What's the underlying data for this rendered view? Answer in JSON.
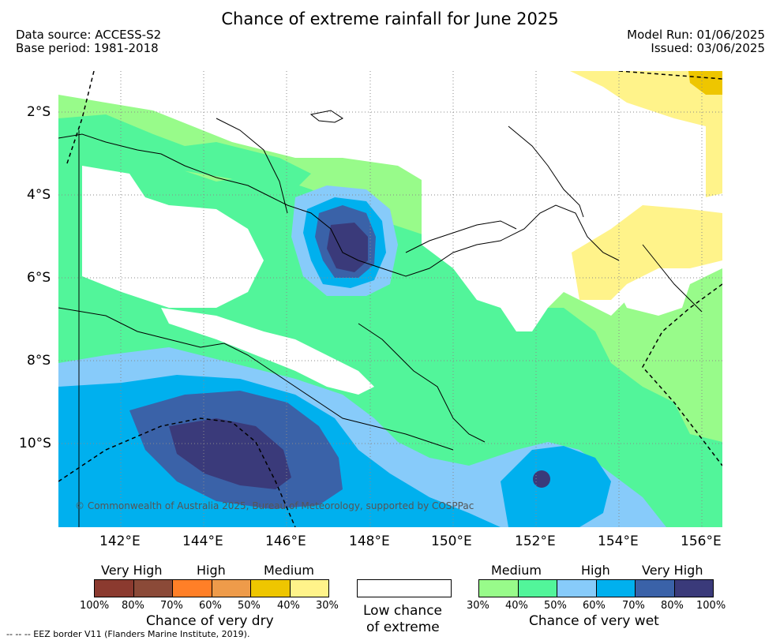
{
  "title": "Chance of extreme rainfall for June 2025",
  "data_source": "Data source: ACCESS-S2",
  "base_period": "Base period: 1981-2018",
  "model_run": "Model Run: 01/06/2025",
  "issued": "Issued: 03/06/2025",
  "lat_labels": [
    "2°S",
    "4°S",
    "6°S",
    "8°S",
    "10°S"
  ],
  "lon_labels": [
    "142°E",
    "144°E",
    "146°E",
    "148°E",
    "150°E",
    "152°E",
    "154°E",
    "156°E"
  ],
  "credit": "© Commonwealth of Australia 2025, Bureau of Meteorology, supported by COSPPac",
  "legend": {
    "dry": {
      "levels": [
        "Very High",
        "High",
        "Medium"
      ],
      "ticks": [
        "100%",
        "80%",
        "70%",
        "60%",
        "50%",
        "40%",
        "30%"
      ],
      "label": "Chance of very dry",
      "colors": [
        "#8b3a2f",
        "#8b4a38",
        "#ff7f27",
        "#ee9b4a",
        "#eec600",
        "#fff38a"
      ]
    },
    "low": {
      "label_line1": "Low chance",
      "label_line2": "of extreme",
      "color": "#ffffff"
    },
    "wet": {
      "levels": [
        "Medium",
        "High",
        "Very High"
      ],
      "ticks": [
        "30%",
        "40%",
        "50%",
        "60%",
        "70%",
        "80%",
        "100%"
      ],
      "label": "Chance of very wet",
      "colors": [
        "#98fb8a",
        "#52f59a",
        "#87cbfa",
        "#00b0ee",
        "#3a62a8",
        "#3a3a7a"
      ]
    }
  },
  "footnote": "--  --  -- EEZ border V11 (Flanders Marine Institute, 2019)."
}
